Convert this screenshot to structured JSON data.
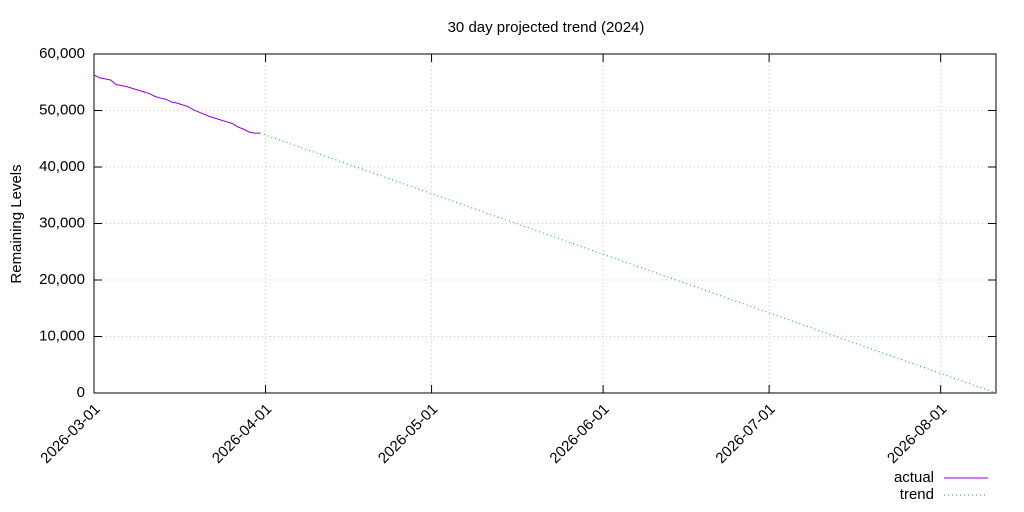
{
  "chart_data": {
    "type": "line",
    "title": "30 day projected trend (2024)",
    "ylabel": "Remaining Levels",
    "xlim": [
      "2026-03-01",
      "2026-08-11"
    ],
    "xticks": [
      "2026-03-01",
      "2026-04-01",
      "2026-05-01",
      "2026-06-01",
      "2026-07-01",
      "2026-08-01"
    ],
    "ylim": [
      0,
      60000
    ],
    "yticks": [
      0,
      {
        "value": 10000,
        "label": "10,000"
      },
      {
        "value": 20000,
        "label": "20,000"
      },
      {
        "value": 30000,
        "label": "30,000"
      },
      {
        "value": 40000,
        "label": "40,000"
      },
      {
        "value": 50000,
        "label": "50,000"
      },
      {
        "value": 60000,
        "label": "60,000"
      }
    ],
    "grid": true,
    "legend": "bottom-right",
    "series": [
      {
        "name": "actual",
        "color": "#9400d3",
        "style": "solid",
        "x": [
          "2026-03-01",
          "2026-03-02",
          "2026-03-03",
          "2026-03-04",
          "2026-03-05",
          "2026-03-06",
          "2026-03-07",
          "2026-03-08",
          "2026-03-09",
          "2026-03-10",
          "2026-03-11",
          "2026-03-12",
          "2026-03-13",
          "2026-03-14",
          "2026-03-15",
          "2026-03-16",
          "2026-03-17",
          "2026-03-18",
          "2026-03-19",
          "2026-03-20",
          "2026-03-21",
          "2026-03-22",
          "2026-03-23",
          "2026-03-24",
          "2026-03-25",
          "2026-03-26",
          "2026-03-27",
          "2026-03-28",
          "2026-03-29",
          "2026-03-30",
          "2026-03-31"
        ],
        "values": [
          56300,
          55800,
          55600,
          55400,
          54600,
          54400,
          54200,
          53900,
          53600,
          53300,
          53000,
          52500,
          52200,
          52000,
          51500,
          51300,
          51000,
          50700,
          50100,
          49700,
          49300,
          48900,
          48600,
          48300,
          48000,
          47700,
          47100,
          46700,
          46200,
          46000,
          46000
        ]
      },
      {
        "name": "trend",
        "color": "#009e73",
        "style": "dotted",
        "x": [
          "2026-03-31",
          "2026-08-11"
        ],
        "values": [
          46000,
          0
        ]
      }
    ]
  }
}
